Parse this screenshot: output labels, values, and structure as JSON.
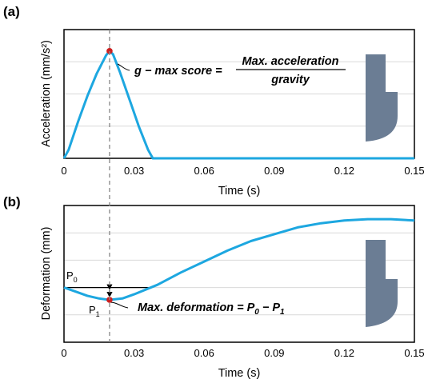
{
  "chart_data": [
    {
      "type": "line",
      "panel_label": "(a)",
      "xlabel": "Time (s)",
      "ylabel": "Acceleration (mm/s²)",
      "xlim": [
        0,
        0.15
      ],
      "ylim": [
        0,
        1.2
      ],
      "x_ticks": [
        "0",
        "0.03",
        "0.06",
        "0.09",
        "0.12",
        "0.15"
      ],
      "grid": "horizontal",
      "line_color": "#1da7e0",
      "series": [
        {
          "x": [
            0,
            0.002,
            0.006,
            0.01,
            0.014,
            0.018,
            0.0195,
            0.021,
            0.024,
            0.028,
            0.032,
            0.036,
            0.038,
            0.06,
            0.09,
            0.12,
            0.15
          ],
          "y": [
            0,
            0.08,
            0.34,
            0.58,
            0.79,
            0.96,
            1.0,
            0.97,
            0.8,
            0.55,
            0.3,
            0.08,
            0.0,
            0.0,
            0.0,
            0.0,
            0.0
          ]
        }
      ],
      "marker": {
        "x": 0.0195,
        "y": 1.0,
        "color": "#cc1f1f"
      },
      "equation": {
        "lhs": "g − max score = ",
        "numerator": "Max. acceleration",
        "denominator": "gravity"
      },
      "icon_color": "#6b7d94"
    },
    {
      "type": "line",
      "panel_label": "(b)",
      "xlabel": "Time (s)",
      "ylabel": "Deformation (mm)",
      "xlim": [
        0,
        0.15
      ],
      "ylim": [
        0,
        1.0
      ],
      "x_ticks": [
        "0",
        "0.03",
        "0.06",
        "0.09",
        "0.12",
        "0.15"
      ],
      "grid": "horizontal",
      "line_color": "#1da7e0",
      "series": [
        {
          "x": [
            0,
            0.005,
            0.01,
            0.015,
            0.0195,
            0.025,
            0.03,
            0.04,
            0.05,
            0.06,
            0.07,
            0.08,
            0.09,
            0.1,
            0.11,
            0.12,
            0.13,
            0.14,
            0.15
          ],
          "y": [
            0.4,
            0.37,
            0.34,
            0.32,
            0.31,
            0.32,
            0.35,
            0.42,
            0.51,
            0.59,
            0.67,
            0.74,
            0.79,
            0.84,
            0.87,
            0.89,
            0.9,
            0.9,
            0.89
          ]
        }
      ],
      "marker": {
        "x": 0.0195,
        "y": 0.31,
        "color": "#cc1f1f"
      },
      "p0": {
        "label": "P",
        "sub": "0",
        "y": 0.4,
        "x_end": 0.037
      },
      "p1": {
        "label": "P",
        "sub": "1"
      },
      "equation": {
        "text": "Max. deformation = P",
        "sub0": "0",
        "mid": " − P",
        "sub1": "1"
      },
      "icon_color": "#6b7d94"
    }
  ],
  "shared_guideline": {
    "x": 0.0195,
    "color": "#888888"
  }
}
